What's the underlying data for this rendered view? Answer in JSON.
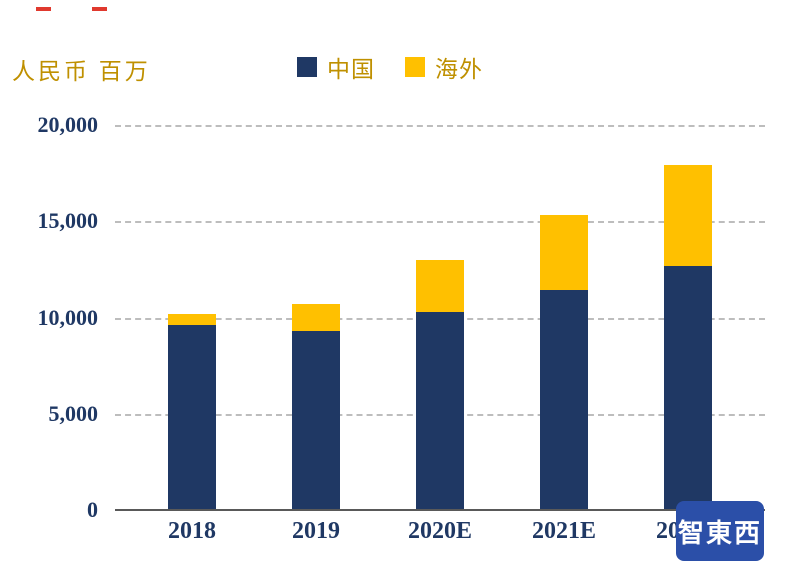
{
  "unit_label": "人民币 百万",
  "legend": [
    {
      "label": "中国",
      "color": "#1F3864"
    },
    {
      "label": "海外",
      "color": "#FFC000"
    }
  ],
  "chart_data": {
    "type": "bar",
    "stacked": true,
    "title": "",
    "xlabel": "",
    "ylabel": "人民币 百万",
    "categories": [
      "2018",
      "2019",
      "2020E",
      "2021E",
      "2022E"
    ],
    "series": [
      {
        "name": "中国",
        "color": "#1F3864",
        "values": [
          9600,
          9300,
          10300,
          11450,
          12700
        ]
      },
      {
        "name": "海外",
        "color": "#FFC000",
        "values": [
          600,
          1400,
          2700,
          3850,
          5200
        ]
      }
    ],
    "totals": [
      10200,
      10700,
      13000,
      15300,
      17900
    ],
    "ylim": [
      0,
      20000
    ],
    "ytick_interval": 5000,
    "yticks": [
      "0",
      "5,000",
      "10,000",
      "15,000",
      "20,000"
    ],
    "grid": "dashed horizontal gridlines",
    "legend_position": "top center"
  },
  "watermark": {
    "text": "智東西",
    "color": "#2B4FA8"
  }
}
